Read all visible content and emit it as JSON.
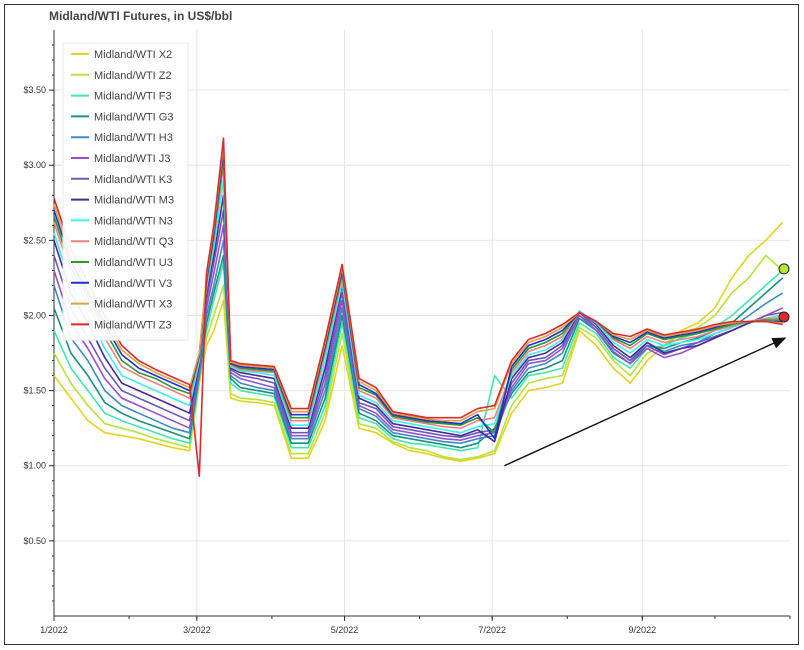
{
  "chart_data": {
    "type": "line",
    "title": "Midland/WTI Futures, in US$/bbl",
    "xlabel": "",
    "ylabel": "",
    "x_tick_labels": [
      "1/2022",
      "3/2022",
      "5/2022",
      "7/2022",
      "9/2022"
    ],
    "x_range": [
      "2022-01-01",
      "2022-11-01"
    ],
    "y_tick_labels": [
      "$0.50",
      "$1.00",
      "$1.50",
      "$2.00",
      "$2.50",
      "$3.00",
      "$3.50"
    ],
    "y_ticks": [
      0.5,
      1.0,
      1.5,
      2.0,
      2.5,
      3.0,
      3.5
    ],
    "ylim": [
      0.0,
      3.9
    ],
    "grid": true,
    "legend_position": "top-left",
    "x": [
      "2022-01-01",
      "2022-01-08",
      "2022-01-15",
      "2022-01-22",
      "2022-01-29",
      "2022-02-05",
      "2022-02-12",
      "2022-02-19",
      "2022-02-26",
      "2022-03-02",
      "2022-03-05",
      "2022-03-08",
      "2022-03-12",
      "2022-03-15",
      "2022-03-19",
      "2022-03-26",
      "2022-04-02",
      "2022-04-09",
      "2022-04-16",
      "2022-04-23",
      "2022-04-30",
      "2022-05-07",
      "2022-05-14",
      "2022-05-21",
      "2022-05-28",
      "2022-06-04",
      "2022-06-11",
      "2022-06-18",
      "2022-06-25",
      "2022-07-02",
      "2022-07-09",
      "2022-07-16",
      "2022-07-23",
      "2022-07-30",
      "2022-08-06",
      "2022-08-13",
      "2022-08-20",
      "2022-08-27",
      "2022-09-03",
      "2022-09-10",
      "2022-09-17",
      "2022-09-24",
      "2022-10-01",
      "2022-10-08",
      "2022-10-15",
      "2022-10-22",
      "2022-10-29"
    ],
    "series": [
      {
        "name": "Midland/WTI X2",
        "color": "#e8d21e",
        "values": [
          1.6,
          1.45,
          1.3,
          1.22,
          1.2,
          1.18,
          1.15,
          1.12,
          1.1,
          1.55,
          1.8,
          1.9,
          2.1,
          1.45,
          1.43,
          1.42,
          1.4,
          1.05,
          1.05,
          1.3,
          1.8,
          1.25,
          1.22,
          1.15,
          1.1,
          1.08,
          1.05,
          1.03,
          1.05,
          1.08,
          1.35,
          1.5,
          1.52,
          1.55,
          1.9,
          1.8,
          1.65,
          1.55,
          1.7,
          1.8,
          1.9,
          1.95,
          2.05,
          2.25,
          2.4,
          2.5,
          2.62
        ]
      },
      {
        "name": "Midland/WTI Z2",
        "color": "#b5e63a",
        "values": [
          1.75,
          1.55,
          1.4,
          1.28,
          1.25,
          1.22,
          1.18,
          1.15,
          1.12,
          1.55,
          1.85,
          2.0,
          2.2,
          1.48,
          1.45,
          1.44,
          1.42,
          1.08,
          1.08,
          1.35,
          1.88,
          1.28,
          1.25,
          1.16,
          1.12,
          1.1,
          1.06,
          1.04,
          1.06,
          1.1,
          1.4,
          1.55,
          1.58,
          1.6,
          1.92,
          1.85,
          1.7,
          1.6,
          1.75,
          1.8,
          1.88,
          1.92,
          2.0,
          2.15,
          2.25,
          2.4,
          2.3
        ]
      },
      {
        "name": "Midland/WTI F3",
        "color": "#40e8b0",
        "values": [
          1.9,
          1.65,
          1.5,
          1.35,
          1.3,
          1.26,
          1.22,
          1.18,
          1.15,
          1.58,
          1.9,
          2.1,
          2.35,
          1.55,
          1.5,
          1.48,
          1.46,
          1.12,
          1.12,
          1.4,
          1.95,
          1.32,
          1.28,
          1.18,
          1.15,
          1.14,
          1.12,
          1.1,
          1.12,
          1.6,
          1.45,
          1.6,
          1.62,
          1.65,
          1.95,
          1.88,
          1.72,
          1.65,
          1.78,
          1.8,
          1.85,
          1.88,
          1.92,
          2.0,
          2.1,
          2.2,
          2.3
        ]
      },
      {
        "name": "Midland/WTI G3",
        "color": "#1a9080",
        "values": [
          2.05,
          1.75,
          1.6,
          1.42,
          1.35,
          1.3,
          1.26,
          1.22,
          1.18,
          1.6,
          1.95,
          2.15,
          2.4,
          1.58,
          1.52,
          1.5,
          1.48,
          1.15,
          1.15,
          1.45,
          2.0,
          1.35,
          1.3,
          1.2,
          1.18,
          1.16,
          1.14,
          1.12,
          1.15,
          1.25,
          1.48,
          1.62,
          1.65,
          1.7,
          1.98,
          1.9,
          1.75,
          1.68,
          1.8,
          1.78,
          1.82,
          1.85,
          1.9,
          1.95,
          2.05,
          2.15,
          2.25
        ]
      },
      {
        "name": "Midland/WTI H3",
        "color": "#3a8cc8",
        "values": [
          2.2,
          1.85,
          1.7,
          1.5,
          1.4,
          1.35,
          1.3,
          1.25,
          1.22,
          1.62,
          2.0,
          2.2,
          2.5,
          1.6,
          1.55,
          1.52,
          1.5,
          1.18,
          1.18,
          1.5,
          2.05,
          1.38,
          1.33,
          1.22,
          1.2,
          1.18,
          1.16,
          1.15,
          1.18,
          1.2,
          1.5,
          1.65,
          1.68,
          1.75,
          2.0,
          1.92,
          1.78,
          1.7,
          1.82,
          1.76,
          1.8,
          1.82,
          1.88,
          1.92,
          2.0,
          2.08,
          2.15
        ]
      },
      {
        "name": "Midland/WTI J3",
        "color": "#9b4fd0",
        "values": [
          2.3,
          1.95,
          1.78,
          1.58,
          1.45,
          1.4,
          1.35,
          1.3,
          1.25,
          1.64,
          2.05,
          2.28,
          2.6,
          1.62,
          1.58,
          1.55,
          1.52,
          1.2,
          1.2,
          1.55,
          2.1,
          1.4,
          1.35,
          1.24,
          1.22,
          1.2,
          1.18,
          1.17,
          1.2,
          1.22,
          1.52,
          1.68,
          1.7,
          1.78,
          2.0,
          1.9,
          1.76,
          1.68,
          1.78,
          1.72,
          1.75,
          1.8,
          1.85,
          1.9,
          1.95,
          2.0,
          2.05
        ]
      },
      {
        "name": "Midland/WTI K3",
        "color": "#6a5ab8",
        "values": [
          2.4,
          2.05,
          1.85,
          1.65,
          1.5,
          1.45,
          1.4,
          1.35,
          1.3,
          1.66,
          2.1,
          2.35,
          2.7,
          1.64,
          1.6,
          1.58,
          1.55,
          1.22,
          1.22,
          1.6,
          2.15,
          1.42,
          1.38,
          1.26,
          1.24,
          1.22,
          1.2,
          1.19,
          1.22,
          1.24,
          1.55,
          1.7,
          1.72,
          1.8,
          2.02,
          1.92,
          1.78,
          1.7,
          1.8,
          1.74,
          1.78,
          1.82,
          1.86,
          1.9,
          1.95,
          2.0,
          2.02
        ]
      },
      {
        "name": "Midland/WTI M3",
        "color": "#4a2a9a",
        "values": [
          2.5,
          2.15,
          1.95,
          1.72,
          1.55,
          1.5,
          1.45,
          1.4,
          1.35,
          1.68,
          2.15,
          2.4,
          2.8,
          1.65,
          1.62,
          1.6,
          1.58,
          1.25,
          1.25,
          1.65,
          2.2,
          1.45,
          1.4,
          1.28,
          1.26,
          1.24,
          1.22,
          1.2,
          1.24,
          1.16,
          1.58,
          1.72,
          1.75,
          1.82,
          2.03,
          1.94,
          1.8,
          1.72,
          1.82,
          1.75,
          1.78,
          1.8,
          1.85,
          1.9,
          1.95,
          1.98,
          2.0
        ]
      },
      {
        "name": "Midland/WTI N3",
        "color": "#3cf0f0",
        "values": [
          2.55,
          2.2,
          2.0,
          1.78,
          1.6,
          1.55,
          1.5,
          1.45,
          1.4,
          1.7,
          2.18,
          2.45,
          2.9,
          1.66,
          1.63,
          1.62,
          1.6,
          1.27,
          1.27,
          1.7,
          2.22,
          1.47,
          1.42,
          1.3,
          1.28,
          1.26,
          1.24,
          1.22,
          1.26,
          1.28,
          1.6,
          1.74,
          1.77,
          1.84,
          2.03,
          1.95,
          1.82,
          1.75,
          1.84,
          1.8,
          1.82,
          1.84,
          1.88,
          1.92,
          1.96,
          1.98,
          2.0
        ]
      },
      {
        "name": "Midland/WTI Q3",
        "color": "#f08080",
        "values": [
          2.62,
          2.28,
          2.08,
          1.85,
          1.66,
          1.6,
          1.55,
          1.5,
          1.45,
          1.72,
          2.2,
          2.5,
          3.0,
          1.67,
          1.64,
          1.63,
          1.62,
          1.3,
          1.3,
          1.75,
          2.25,
          1.5,
          1.45,
          1.32,
          1.3,
          1.28,
          1.26,
          1.25,
          1.3,
          1.32,
          1.62,
          1.76,
          1.8,
          1.86,
          2.02,
          1.96,
          1.84,
          1.78,
          1.86,
          1.82,
          1.84,
          1.86,
          1.9,
          1.93,
          1.96,
          1.98,
          1.98
        ]
      },
      {
        "name": "Midland/WTI U3",
        "color": "#2a9a30",
        "values": [
          2.66,
          2.32,
          2.12,
          1.9,
          1.7,
          1.62,
          1.58,
          1.52,
          1.48,
          1.73,
          2.22,
          2.52,
          3.05,
          1.68,
          1.65,
          1.64,
          1.63,
          1.32,
          1.32,
          1.78,
          2.28,
          1.52,
          1.47,
          1.33,
          1.31,
          1.29,
          1.28,
          1.27,
          1.32,
          1.22,
          1.64,
          1.78,
          1.82,
          1.88,
          2.02,
          1.96,
          1.85,
          1.8,
          1.88,
          1.84,
          1.86,
          1.88,
          1.91,
          1.94,
          1.96,
          1.97,
          1.97
        ]
      },
      {
        "name": "Midland/WTI V3",
        "color": "#2030d0",
        "values": [
          2.7,
          2.36,
          2.15,
          1.94,
          1.74,
          1.65,
          1.6,
          1.55,
          1.5,
          1.74,
          2.24,
          2.55,
          3.1,
          1.68,
          1.66,
          1.65,
          1.64,
          1.34,
          1.34,
          1.8,
          2.3,
          1.54,
          1.48,
          1.34,
          1.32,
          1.3,
          1.29,
          1.28,
          1.34,
          1.18,
          1.66,
          1.8,
          1.84,
          1.9,
          2.02,
          1.96,
          1.86,
          1.82,
          1.89,
          1.85,
          1.87,
          1.89,
          1.92,
          1.95,
          1.96,
          1.96,
          1.96
        ]
      },
      {
        "name": "Midland/WTI X3",
        "color": "#e0a040",
        "values": [
          2.74,
          2.4,
          2.18,
          1.97,
          1.77,
          1.68,
          1.62,
          1.57,
          1.52,
          1.75,
          2.26,
          2.58,
          3.14,
          1.69,
          1.67,
          1.66,
          1.65,
          1.36,
          1.36,
          1.82,
          2.32,
          1.56,
          1.5,
          1.35,
          1.33,
          1.31,
          1.3,
          1.3,
          1.36,
          1.38,
          1.68,
          1.82,
          1.86,
          1.92,
          2.02,
          1.96,
          1.87,
          1.84,
          1.9,
          1.86,
          1.88,
          1.9,
          1.93,
          1.95,
          1.96,
          1.96,
          1.95
        ]
      },
      {
        "name": "Midland/WTI Z3",
        "color": "#e02828",
        "values": [
          2.78,
          2.44,
          2.22,
          2.0,
          1.8,
          1.7,
          1.64,
          1.59,
          1.54,
          0.93,
          2.28,
          2.6,
          3.18,
          1.7,
          1.68,
          1.67,
          1.66,
          1.38,
          1.38,
          1.84,
          2.34,
          1.58,
          1.52,
          1.36,
          1.34,
          1.32,
          1.32,
          1.32,
          1.38,
          1.4,
          1.7,
          1.84,
          1.88,
          1.94,
          2.02,
          1.96,
          1.88,
          1.86,
          1.91,
          1.87,
          1.89,
          1.91,
          1.94,
          1.96,
          1.96,
          1.96,
          1.94
        ]
      }
    ],
    "end_markers": [
      {
        "series": "Midland/WTI Z2",
        "color": "#b5e63a",
        "x": "2022-11-01",
        "y": 2.31
      },
      {
        "series": "Midland/WTI Z3",
        "color": "#e02828",
        "x": "2022-11-01",
        "y": 1.99
      }
    ],
    "annotation_arrow": {
      "from": {
        "x": "2022-07-06",
        "y": 1.0
      },
      "to": {
        "x": "2022-10-30",
        "y": 1.85
      }
    }
  }
}
